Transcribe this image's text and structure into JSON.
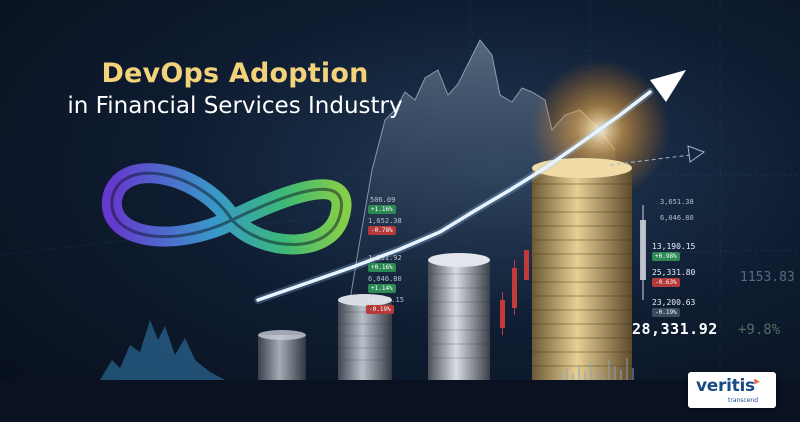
{
  "banner": {
    "title_main": "DevOps Adoption",
    "title_sub": "in Financial Services Industry"
  },
  "readouts": {
    "big_price": "28,331.92",
    "ghost_price": "1153.83",
    "ghost_price_right": "+9.8%"
  },
  "quotes": [
    {
      "value": "13,190.15",
      "change": "+0.98%",
      "tone": "up"
    },
    {
      "value": "25,331.80",
      "change": "-0.63%",
      "tone": "down"
    },
    {
      "value": "23,200.63",
      "change": "-0.19%",
      "tone": "down"
    }
  ],
  "small_quotes": [
    {
      "value": "506.09",
      "change": "+1.16%"
    },
    {
      "value": "1,652.38",
      "change": "-0.78%"
    },
    {
      "value": "1,331.92",
      "change": "+0.16%"
    },
    {
      "value": "6,046.80",
      "change": "+1.14%"
    },
    {
      "value": "13,190.15",
      "change": "-0.19%"
    }
  ],
  "right_small": [
    {
      "value": "3,651.38"
    },
    {
      "value": "6,046.80"
    }
  ],
  "logo": {
    "name": "veritis",
    "tagline": "transcend"
  },
  "colors": {
    "title_accent": "#f2d27a",
    "brand_blue": "#1a4a86",
    "brand_orange": "#e2502b",
    "up": "#2e8a55",
    "down": "#b63a3a"
  }
}
